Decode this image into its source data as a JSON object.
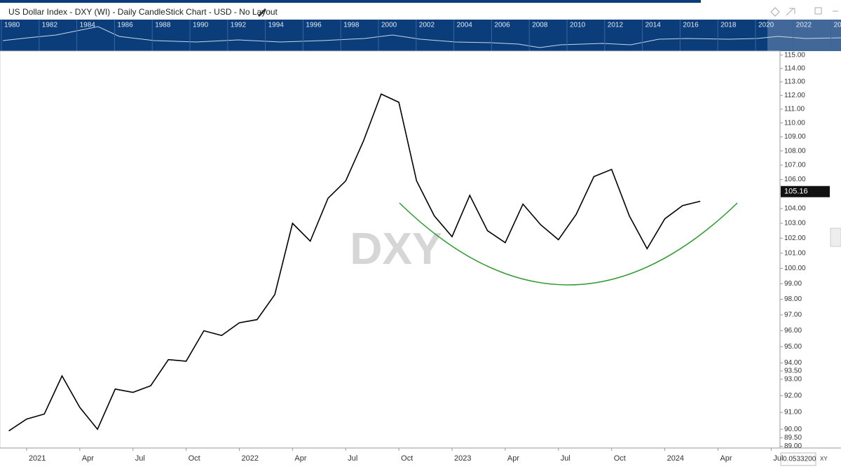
{
  "header": {
    "title": "US Dollar Index - DXY (WI) - Daily CandleStick Chart - USD - No Layout"
  },
  "navigator": {
    "years": [
      "1980",
      "1982",
      "1984",
      "1986",
      "1988",
      "1990",
      "1992",
      "1994",
      "1996",
      "1998",
      "2000",
      "2002",
      "2004",
      "2006",
      "2008",
      "2010",
      "2012",
      "2014",
      "2016",
      "2018",
      "2020",
      "2022",
      "2024"
    ]
  },
  "chart_data": {
    "type": "line",
    "log_scale": true,
    "color": "#000000",
    "watermark": "DXY",
    "categories": [
      null,
      "2021",
      null,
      null,
      "Apr",
      null,
      null,
      "Jul",
      null,
      null,
      "Oct",
      null,
      null,
      "2022",
      null,
      null,
      "Apr",
      null,
      null,
      "Jul",
      null,
      null,
      "Oct",
      null,
      null,
      "2023",
      null,
      null,
      "Apr",
      null,
      null,
      "Jul",
      null,
      null,
      "Oct",
      null,
      null,
      "2024",
      null,
      null,
      "Apr",
      null,
      null,
      "Jul"
    ],
    "values": [
      89.9,
      90.6,
      90.9,
      93.2,
      91.3,
      90.0,
      92.4,
      92.2,
      92.6,
      94.2,
      94.1,
      96.0,
      95.7,
      96.5,
      96.7,
      98.3,
      103.0,
      101.8,
      104.7,
      105.9,
      108.7,
      112.1,
      111.5,
      105.9,
      103.5,
      102.1,
      104.9,
      102.5,
      101.7,
      104.3,
      102.9,
      101.9,
      103.6,
      106.2,
      106.7,
      103.5,
      101.3,
      103.3,
      104.2,
      104.5,
      null,
      null,
      null,
      null
    ],
    "ylim": [
      88.9,
      115.3
    ],
    "yticks": [
      {
        "value": 89,
        "label": "89.00"
      },
      {
        "value": 89.5,
        "label": "89.50"
      },
      {
        "value": 90,
        "label": "90.00"
      },
      {
        "value": 91,
        "label": "91.00"
      },
      {
        "value": 92,
        "label": "92.00"
      },
      {
        "value": 93,
        "label": "93.00"
      },
      {
        "value": 93.5,
        "label": "93.50"
      },
      {
        "value": 94,
        "label": "94.00"
      },
      {
        "value": 95,
        "label": "95.00"
      },
      {
        "value": 96,
        "label": "96.00"
      },
      {
        "value": 97,
        "label": "97.00"
      },
      {
        "value": 98,
        "label": "98.00"
      },
      {
        "value": 99,
        "label": "99.00"
      },
      {
        "value": 100,
        "label": "100.00"
      },
      {
        "value": 101,
        "label": "101.00"
      },
      {
        "value": 102,
        "label": "102.00"
      },
      {
        "value": 103,
        "label": "103.00"
      },
      {
        "value": 104,
        "label": "104.00"
      },
      {
        "value": 105,
        "label": "105.00"
      },
      {
        "value": 106,
        "label": "106.00"
      },
      {
        "value": 107,
        "label": "107.00"
      },
      {
        "value": 108,
        "label": "108.00"
      },
      {
        "value": 109,
        "label": "109.00"
      },
      {
        "value": 110,
        "label": "110.00"
      },
      {
        "value": 111,
        "label": "111.00"
      },
      {
        "value": 112,
        "label": "112.00"
      },
      {
        "value": 113,
        "label": "113.00"
      },
      {
        "value": 114,
        "label": "114.00"
      },
      {
        "value": 115,
        "label": "115.00"
      }
    ],
    "last_price": 105.16,
    "corner_value": "0.0533200",
    "corner_button": "XY"
  }
}
